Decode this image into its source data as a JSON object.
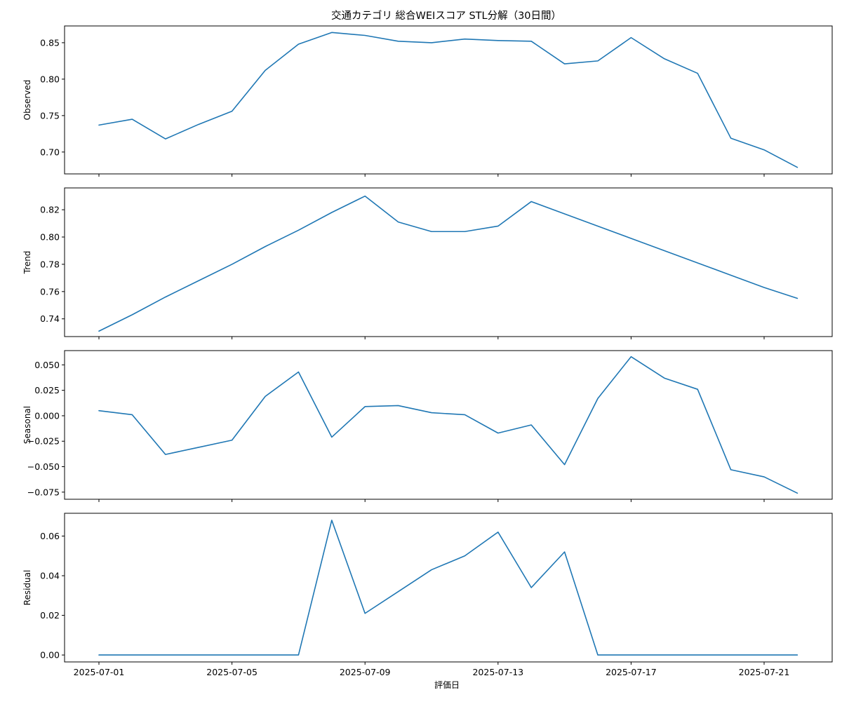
{
  "chart_data": {
    "type": "line",
    "title": "交通カテゴリ 総合WEIスコア STL分解（30日間）",
    "xlabel": "評価日",
    "x": [
      "2025-07-01",
      "2025-07-02",
      "2025-07-03",
      "2025-07-04",
      "2025-07-05",
      "2025-07-06",
      "2025-07-07",
      "2025-07-08",
      "2025-07-09",
      "2025-07-10",
      "2025-07-11",
      "2025-07-12",
      "2025-07-13",
      "2025-07-14",
      "2025-07-15",
      "2025-07-16",
      "2025-07-17",
      "2025-07-18",
      "2025-07-19",
      "2025-07-20",
      "2025-07-21",
      "2025-07-22"
    ],
    "x_ticks": [
      "2025-07-01",
      "2025-07-05",
      "2025-07-09",
      "2025-07-13",
      "2025-07-17",
      "2025-07-21"
    ],
    "line_color": "#1f77b4",
    "grid": false,
    "panels": [
      {
        "ylabel": "Observed",
        "ylim": [
          0.67,
          0.873
        ],
        "yticks": [
          0.7,
          0.75,
          0.8,
          0.85
        ],
        "tick_labels": [
          "0.70",
          "0.75",
          "0.80",
          "0.85"
        ],
        "values": [
          0.737,
          0.745,
          0.718,
          0.738,
          0.756,
          0.812,
          0.848,
          0.864,
          0.86,
          0.852,
          0.85,
          0.855,
          0.853,
          0.852,
          0.821,
          0.825,
          0.857,
          0.828,
          0.808,
          0.719,
          0.703,
          0.679
        ]
      },
      {
        "ylabel": "Trend",
        "ylim": [
          0.727,
          0.836
        ],
        "yticks": [
          0.74,
          0.76,
          0.78,
          0.8,
          0.82
        ],
        "tick_labels": [
          "0.74",
          "0.76",
          "0.78",
          "0.80",
          "0.82"
        ],
        "values": [
          0.731,
          0.743,
          0.756,
          0.768,
          0.78,
          0.793,
          0.805,
          0.818,
          0.83,
          0.811,
          0.804,
          0.804,
          0.808,
          0.826,
          0.817,
          0.808,
          0.799,
          0.79,
          0.781,
          0.772,
          0.763,
          0.755
        ]
      },
      {
        "ylabel": "Seasonal",
        "ylim": [
          -0.082,
          0.064
        ],
        "yticks": [
          -0.075,
          -0.05,
          -0.025,
          0.0,
          0.025,
          0.05
        ],
        "tick_labels": [
          "−0.075",
          "−0.050",
          "−0.025",
          "0.000",
          "0.025",
          "0.050"
        ],
        "values": [
          0.005,
          0.001,
          -0.038,
          -0.031,
          -0.024,
          0.019,
          0.043,
          -0.021,
          0.009,
          0.01,
          0.003,
          0.001,
          -0.017,
          -0.009,
          -0.048,
          0.017,
          0.058,
          0.037,
          0.026,
          -0.053,
          -0.06,
          -0.076
        ]
      },
      {
        "ylabel": "Residual",
        "ylim": [
          -0.0035,
          0.0715
        ],
        "yticks": [
          0.0,
          0.02,
          0.04,
          0.06
        ],
        "tick_labels": [
          "0.00",
          "0.02",
          "0.04",
          "0.06"
        ],
        "values": [
          0.0,
          0.0,
          0.0,
          0.0,
          0.0,
          0.0,
          0.0,
          0.068,
          0.021,
          0.032,
          0.043,
          0.05,
          0.062,
          0.034,
          0.052,
          0.0,
          0.0,
          0.0,
          0.0,
          0.0,
          0.0,
          0.0
        ]
      }
    ]
  }
}
